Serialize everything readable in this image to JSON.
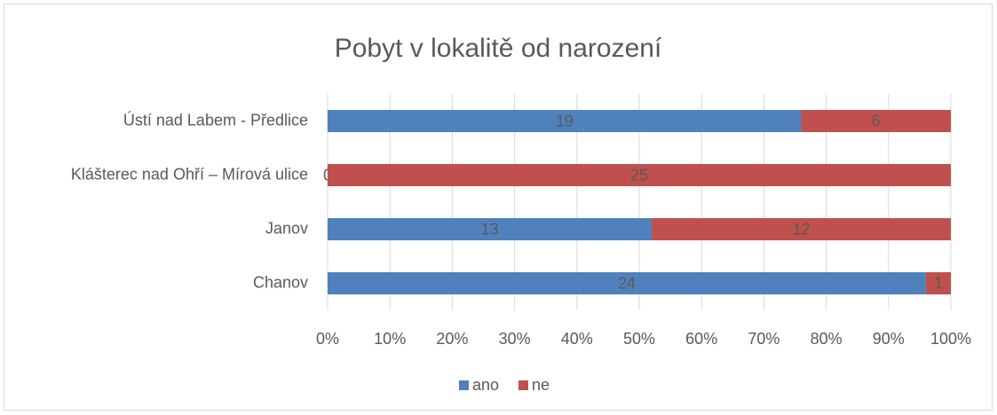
{
  "chart_data": {
    "type": "bar",
    "orientation": "horizontal",
    "stacking": "percent",
    "title": "Pobyt v lokalitě od narození",
    "categories": [
      "Ústí nad Labem - Předlice",
      "Klášterec nad Ohří – Mírová ulice",
      "Janov",
      "Chanov"
    ],
    "series": [
      {
        "name": "ano",
        "color": "#4f81bd",
        "values": [
          19,
          0,
          13,
          24
        ]
      },
      {
        "name": "ne",
        "color": "#c0504d",
        "values": [
          6,
          25,
          12,
          1
        ]
      }
    ],
    "xlim": [
      0,
      100
    ],
    "xticks": [
      {
        "value": 0,
        "label": "0%"
      },
      {
        "value": 10,
        "label": "10%"
      },
      {
        "value": 20,
        "label": "20%"
      },
      {
        "value": 30,
        "label": "30%"
      },
      {
        "value": 40,
        "label": "40%"
      },
      {
        "value": 50,
        "label": "50%"
      },
      {
        "value": 60,
        "label": "60%"
      },
      {
        "value": 70,
        "label": "70%"
      },
      {
        "value": 80,
        "label": "80%"
      },
      {
        "value": 90,
        "label": "90%"
      },
      {
        "value": 100,
        "label": "100%"
      }
    ],
    "grid": true,
    "legend": "bottom"
  }
}
